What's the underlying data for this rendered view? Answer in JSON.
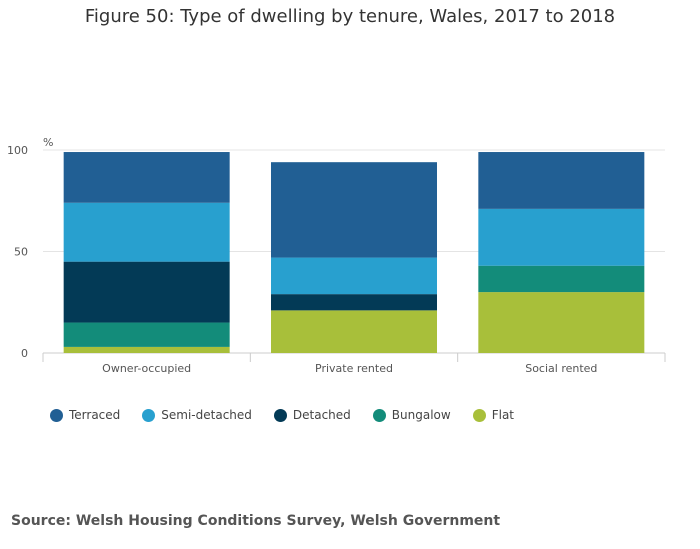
{
  "chart_data": {
    "type": "bar",
    "stacked": true,
    "title": "Figure 50: Type of dwelling by tenure, Wales, 2017 to 2018",
    "ylabel": "%",
    "ylim": [
      0,
      100
    ],
    "yticks": [
      0,
      50,
      100
    ],
    "categories": [
      "Owner-occupied",
      "Private rented",
      "Social rented"
    ],
    "series": [
      {
        "name": "Flat",
        "color": "#a8bf3a",
        "values": [
          3,
          21,
          30
        ]
      },
      {
        "name": "Bungalow",
        "color": "#138c7a",
        "values": [
          12,
          0,
          13
        ]
      },
      {
        "name": "Detached",
        "color": "#033a56",
        "values": [
          30,
          8,
          0
        ]
      },
      {
        "name": "Semi-detached",
        "color": "#28a0cf",
        "values": [
          29,
          18,
          28
        ]
      },
      {
        "name": "Terraced",
        "color": "#215f94",
        "values": [
          25,
          47,
          28
        ]
      }
    ],
    "legend_order": [
      "Terraced",
      "Semi-detached",
      "Detached",
      "Bungalow",
      "Flat"
    ],
    "legend_position": "bottom-left",
    "grid": true
  },
  "source": "Source: Welsh Housing Conditions Survey, Welsh Government"
}
